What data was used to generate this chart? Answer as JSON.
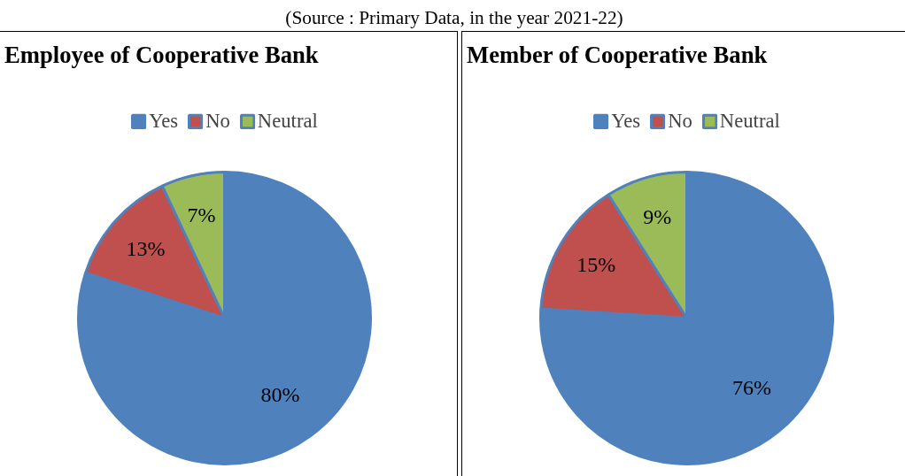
{
  "chart_data": [
    {
      "type": "pie",
      "title": "Employee of Cooperative Bank",
      "categories": [
        "Yes",
        "No",
        "Neutral"
      ],
      "values": [
        80,
        13,
        7
      ],
      "colors": [
        "#4f81bd",
        "#c0504d",
        "#9bbb59"
      ],
      "value_labels": [
        "80%",
        "13%",
        "7%"
      ],
      "legend": "top",
      "annotations": [
        "(Source : Primary Data, in the year 2021-22)"
      ]
    },
    {
      "type": "pie",
      "title": "Member of Cooperative Bank",
      "categories": [
        "Yes",
        "No",
        "Neutral"
      ],
      "values": [
        76,
        15,
        9
      ],
      "colors": [
        "#4f81bd",
        "#c0504d",
        "#9bbb59"
      ],
      "value_labels": [
        "76%",
        "15%",
        "9%"
      ],
      "legend": "top"
    }
  ]
}
